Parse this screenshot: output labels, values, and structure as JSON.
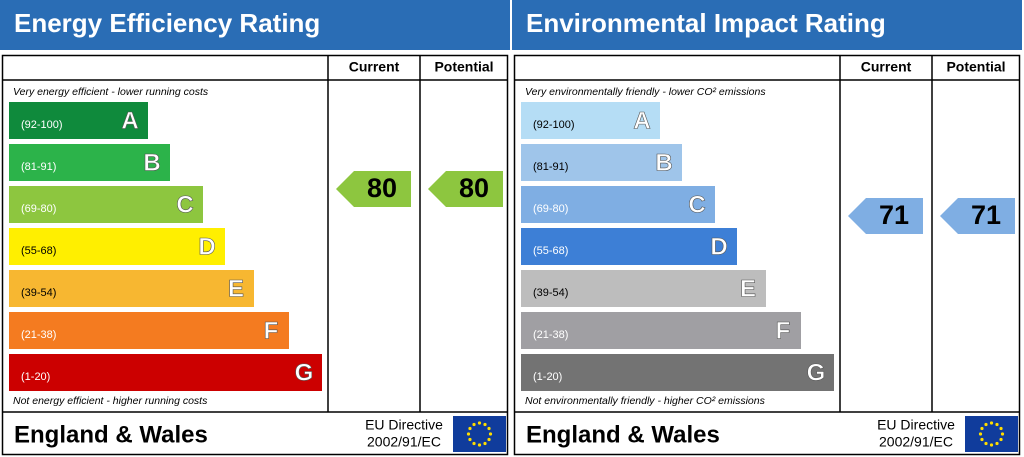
{
  "panels": [
    {
      "title": "Energy Efficiency Rating",
      "columns": [
        "Current",
        "Potential"
      ],
      "top_note": "Very energy efficient - lower running costs",
      "bottom_note": "Not energy efficient - higher running costs",
      "bands": [
        {
          "range": "(92-100)",
          "letter": "A",
          "color": "#0f8a3c"
        },
        {
          "range": "(81-91)",
          "letter": "B",
          "color": "#2cb34a"
        },
        {
          "range": "(69-80)",
          "letter": "C",
          "color": "#8dc63f"
        },
        {
          "range": "(55-68)",
          "letter": "D",
          "color": "#ffef00"
        },
        {
          "range": "(39-54)",
          "letter": "E",
          "color": "#f7b731"
        },
        {
          "range": "(21-38)",
          "letter": "F",
          "color": "#f47b20"
        },
        {
          "range": "(1-20)",
          "letter": "G",
          "color": "#cc0000"
        }
      ],
      "current": 80,
      "potential": 80,
      "region": "England & Wales",
      "directive": [
        "EU Directive",
        "2002/91/EC"
      ]
    },
    {
      "title": "Environmental Impact Rating",
      "columns": [
        "Current",
        "Potential"
      ],
      "top_note": "Very environmentally friendly - lower CO² emissions",
      "bottom_note": "Not environmentally friendly - higher CO² emissions",
      "bands": [
        {
          "range": "(92-100)",
          "letter": "A",
          "color": "#b5ddf5"
        },
        {
          "range": "(81-91)",
          "letter": "B",
          "color": "#9fc5ea"
        },
        {
          "range": "(69-80)",
          "letter": "C",
          "color": "#7faee3"
        },
        {
          "range": "(55-68)",
          "letter": "D",
          "color": "#3d7fd6"
        },
        {
          "range": "(39-54)",
          "letter": "E",
          "color": "#bdbdbd"
        },
        {
          "range": "(21-38)",
          "letter": "F",
          "color": "#a09fa3"
        },
        {
          "range": "(1-20)",
          "letter": "G",
          "color": "#737373"
        }
      ],
      "current": 71,
      "potential": 71,
      "region": "England & Wales",
      "directive": [
        "EU Directive",
        "2002/91/EC"
      ]
    }
  ]
}
